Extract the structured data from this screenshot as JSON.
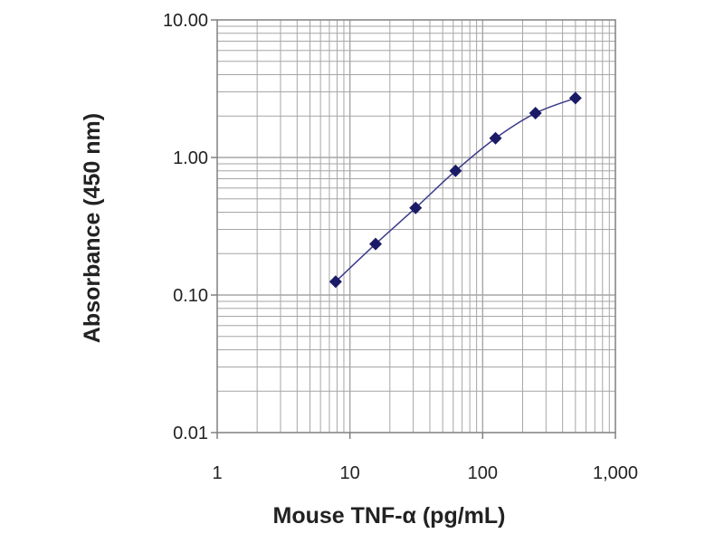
{
  "chart_data": {
    "type": "scatter",
    "title": "",
    "xlabel": "Mouse TNF-α (pg/mL)",
    "ylabel": "Absorbance (450 nm)",
    "xscale": "log",
    "yscale": "log",
    "xlim": [
      1,
      1000
    ],
    "ylim": [
      0.01,
      10
    ],
    "x_tick_labels": [
      "1",
      "10",
      "100",
      "1,000"
    ],
    "y_tick_labels": [
      "0.01",
      "0.10",
      "1.00",
      "10.00"
    ],
    "grid": true,
    "legend": "none",
    "series": [
      {
        "x": [
          7.8,
          15.6,
          31.25,
          62.5,
          125,
          250,
          500
        ],
        "y": [
          0.125,
          0.235,
          0.43,
          0.8,
          1.38,
          2.1,
          2.7
        ],
        "marker": "diamond",
        "line": "smooth",
        "color": "#1a1a66"
      }
    ]
  },
  "colors": {
    "grid": "#a6a6a6",
    "axis": "#808080",
    "line": "#3a3a8a",
    "marker": "#1a1a66"
  }
}
